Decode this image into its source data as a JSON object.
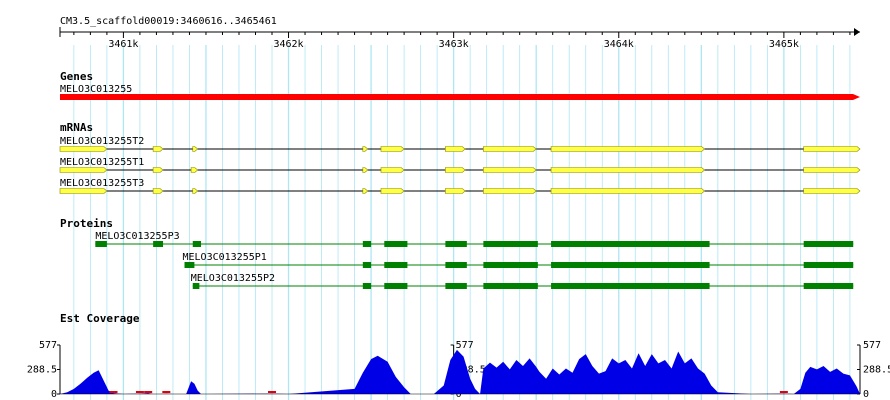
{
  "browser": {
    "region_label": "CM3.5_scaffold00019:3460616..3465461",
    "start": 3460616,
    "end": 3465461,
    "ruler_ticks": [
      {
        "pos": 3461000,
        "label": "3461k"
      },
      {
        "pos": 3462000,
        "label": "3462k"
      },
      {
        "pos": 3463000,
        "label": "3463k"
      },
      {
        "pos": 3464000,
        "label": "3464k"
      },
      {
        "pos": 3465000,
        "label": "3465k"
      }
    ]
  },
  "colors": {
    "gene": "#ff0000",
    "mrna": "#ffff44",
    "mrna_edge": "#888800",
    "protein": "#008000",
    "coverage": "#0000e6",
    "coverage_low": "#e60000",
    "grid": "#aee6f4",
    "axis": "#000000"
  },
  "sections": {
    "genes": "Genes",
    "mrnas": "mRNAs",
    "proteins": "Proteins",
    "coverage": "Est Coverage"
  },
  "genes": [
    {
      "name": "MELO3C013255",
      "start": 3460616,
      "end": 3465461
    }
  ],
  "mrnas": [
    {
      "name": "MELO3C013255T2",
      "start": 3460616,
      "end": 3465461,
      "exons": [
        [
          3460616,
          3460900
        ],
        [
          3461180,
          3461240
        ],
        [
          3461420,
          3461450
        ],
        [
          3462450,
          3462480
        ],
        [
          3462560,
          3462700
        ],
        [
          3462950,
          3463070
        ],
        [
          3463180,
          3463500
        ],
        [
          3463590,
          3464520
        ],
        [
          3465120,
          3465461
        ]
      ]
    },
    {
      "name": "MELO3C013255T1",
      "start": 3460616,
      "end": 3465461,
      "exons": [
        [
          3460616,
          3460900
        ],
        [
          3461180,
          3461240
        ],
        [
          3461410,
          3461450
        ],
        [
          3462450,
          3462480
        ],
        [
          3462560,
          3462700
        ],
        [
          3462950,
          3463070
        ],
        [
          3463180,
          3463500
        ],
        [
          3463590,
          3464520
        ],
        [
          3465120,
          3465461
        ]
      ]
    },
    {
      "name": "MELO3C013255T3",
      "start": 3460616,
      "end": 3465461,
      "exons": [
        [
          3460616,
          3460900
        ],
        [
          3461180,
          3461240
        ],
        [
          3461420,
          3461450
        ],
        [
          3462450,
          3462480
        ],
        [
          3462560,
          3462700
        ],
        [
          3462950,
          3463070
        ],
        [
          3463180,
          3463500
        ],
        [
          3463590,
          3464520
        ],
        [
          3465120,
          3465461
        ]
      ]
    }
  ],
  "proteins": [
    {
      "name": "MELO3C013255P3",
      "start": 3460830,
      "end": 3465420,
      "exons": [
        [
          3460830,
          3460900
        ],
        [
          3461180,
          3461240
        ],
        [
          3461420,
          3461470
        ],
        [
          3462450,
          3462500
        ],
        [
          3462580,
          3462720
        ],
        [
          3462950,
          3463080
        ],
        [
          3463180,
          3463510
        ],
        [
          3463590,
          3464550
        ],
        [
          3465120,
          3465420
        ]
      ]
    },
    {
      "name": "MELO3C013255P1",
      "start": 3461370,
      "end": 3465420,
      "exons": [
        [
          3461370,
          3461430
        ],
        [
          3462450,
          3462500
        ],
        [
          3462580,
          3462720
        ],
        [
          3462950,
          3463080
        ],
        [
          3463180,
          3463510
        ],
        [
          3463590,
          3464550
        ],
        [
          3465120,
          3465420
        ]
      ]
    },
    {
      "name": "MELO3C013255P2",
      "start": 3461420,
      "end": 3465420,
      "exons": [
        [
          3461420,
          3461460
        ],
        [
          3462450,
          3462500
        ],
        [
          3462580,
          3462720
        ],
        [
          3462950,
          3463080
        ],
        [
          3463180,
          3463510
        ],
        [
          3463590,
          3464550
        ],
        [
          3465120,
          3465420
        ]
      ]
    }
  ],
  "chart_data": {
    "type": "area",
    "title": "Est Coverage",
    "ylim": [
      0,
      577
    ],
    "y_ticks": [
      "577",
      "288.5",
      "0"
    ],
    "x": [
      3460616,
      3460660,
      3460700,
      3460740,
      3460780,
      3460820,
      3460850,
      3460870,
      3460890,
      3460910,
      3460940,
      3461000,
      3461100,
      3461150,
      3461180,
      3461220,
      3461260,
      3461300,
      3461350,
      3461380,
      3461410,
      3461430,
      3461450,
      3461470,
      3461500,
      3461900,
      3462000,
      3462400,
      3462450,
      3462500,
      3462540,
      3462600,
      3462650,
      3462700,
      3462740,
      3462800,
      3462880,
      3462940,
      3462980,
      3463020,
      3463060,
      3463100,
      3463130,
      3463160,
      3463180,
      3463220,
      3463260,
      3463300,
      3463340,
      3463380,
      3463420,
      3463460,
      3463500,
      3463520,
      3463560,
      3463600,
      3463640,
      3463680,
      3463720,
      3463760,
      3463800,
      3463840,
      3463880,
      3463920,
      3463960,
      3464000,
      3464040,
      3464080,
      3464120,
      3464160,
      3464200,
      3464240,
      3464280,
      3464320,
      3464360,
      3464400,
      3464440,
      3464480,
      3464520,
      3464560,
      3464600,
      3464800,
      3465000,
      3465060,
      3465100,
      3465130,
      3465160,
      3465200,
      3465240,
      3465280,
      3465320,
      3465360,
      3465400,
      3465440,
      3465461
    ],
    "values": [
      0,
      20,
      60,
      120,
      190,
      250,
      280,
      200,
      120,
      40,
      10,
      0,
      5,
      10,
      0,
      0,
      5,
      0,
      0,
      0,
      150,
      120,
      40,
      0,
      0,
      5,
      0,
      60,
      250,
      410,
      450,
      380,
      200,
      80,
      0,
      0,
      0,
      100,
      400,
      520,
      440,
      180,
      60,
      0,
      300,
      370,
      310,
      380,
      290,
      400,
      330,
      420,
      320,
      260,
      180,
      300,
      230,
      300,
      250,
      410,
      470,
      330,
      240,
      270,
      420,
      360,
      400,
      300,
      480,
      330,
      470,
      360,
      400,
      300,
      500,
      360,
      420,
      300,
      240,
      100,
      20,
      0,
      5,
      0,
      60,
      250,
      320,
      290,
      330,
      260,
      300,
      240,
      220,
      90,
      0
    ]
  }
}
